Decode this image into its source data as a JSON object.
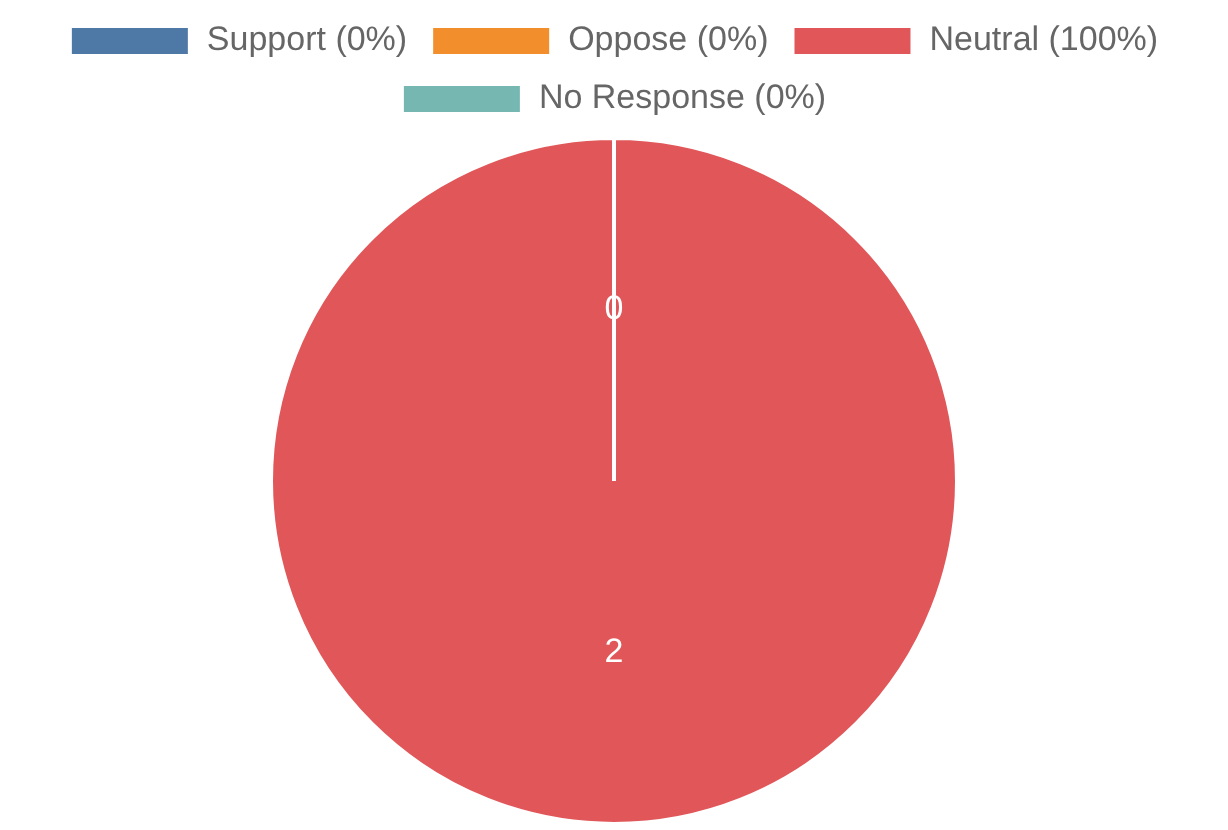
{
  "chart_data": {
    "type": "pie",
    "categories": [
      "Support (0%)",
      "Oppose (0%)",
      "Neutral (100%)",
      "No Response (0%)"
    ],
    "values": [
      0,
      0,
      2,
      0
    ],
    "colors": [
      "#4e79a7",
      "#f28e2b",
      "#e15759",
      "#76b7b2"
    ],
    "value_labels": [
      "0",
      null,
      "2",
      null
    ],
    "legend": "top"
  }
}
